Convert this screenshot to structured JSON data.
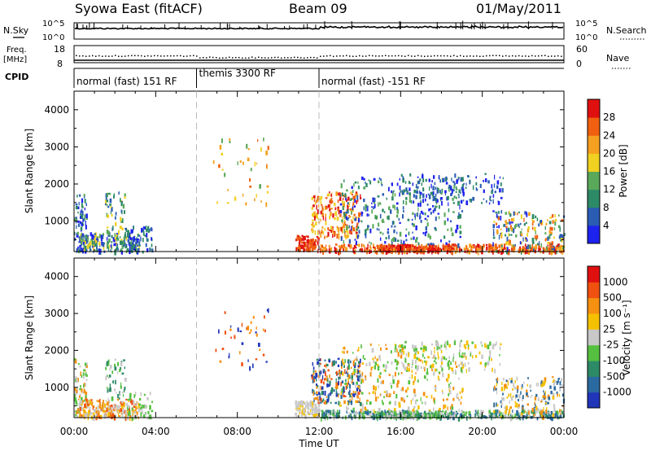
{
  "header": {
    "station": "Syowa East (fitACF)",
    "beam": "Beam 09",
    "date": "01/May/2011"
  },
  "noise_panel": {
    "left_label": "N.Sky",
    "right_label": "N.Search",
    "tick_top": "10^5",
    "tick_bottom": "10^0"
  },
  "freq_panel": {
    "left_label_line1": "Freq.",
    "left_label_line2": "[MHz]",
    "right_label": "Nave",
    "left_tick_top": "18",
    "left_tick_bottom": "8",
    "right_tick_top": "60",
    "right_tick_bottom": "0"
  },
  "cpid": {
    "label": "CPID",
    "segments": [
      {
        "name": "normal (fast) 151 RF",
        "start_hour": 0,
        "end_hour": 6
      },
      {
        "name": "themis 3300 RF",
        "start_hour": 6,
        "end_hour": 12
      },
      {
        "name": "normal (fast) -151 RF",
        "start_hour": 12,
        "end_hour": 24
      }
    ]
  },
  "axes": {
    "xlabel": "Time UT",
    "ylabel": "Slant Range [km]",
    "x_ticks": [
      "00:00",
      "04:00",
      "08:00",
      "12:00",
      "16:00",
      "20:00",
      "00:00"
    ],
    "y_ticks": [
      "1000",
      "2000",
      "3000",
      "4000"
    ]
  },
  "chart_data": [
    {
      "type": "heatmap",
      "xlabel": "Time UT",
      "ylabel": "Slant Range [km]",
      "xlim": [
        0,
        24
      ],
      "ylim": [
        180,
        4500
      ],
      "colorbar_label": "Power [dB]",
      "colorbar_ticks": [
        "4",
        "8",
        "12",
        "16",
        "20",
        "24",
        "28"
      ],
      "colorscale": [
        "#1e22ee",
        "#2a5cb4",
        "#2d8a66",
        "#5aa85a",
        "#f0d020",
        "#f5a020",
        "#f06010",
        "#e01010"
      ]
    },
    {
      "type": "heatmap",
      "xlabel": "Time UT",
      "ylabel": "Slant Range [km]",
      "xlim": [
        0,
        24
      ],
      "ylim": [
        180,
        4500
      ],
      "colorbar_label": "Velocity [m s⁻¹]",
      "colorbar_ticks": [
        "1000",
        "500",
        "100",
        "25",
        "-25",
        "-100",
        "-500",
        "-1000"
      ],
      "colorscale": [
        "#2035b8",
        "#2a6aa0",
        "#2d8a66",
        "#55c040",
        "#c8c8c8",
        "#f5c000",
        "#f59010",
        "#f05010",
        "#e01010"
      ]
    }
  ]
}
